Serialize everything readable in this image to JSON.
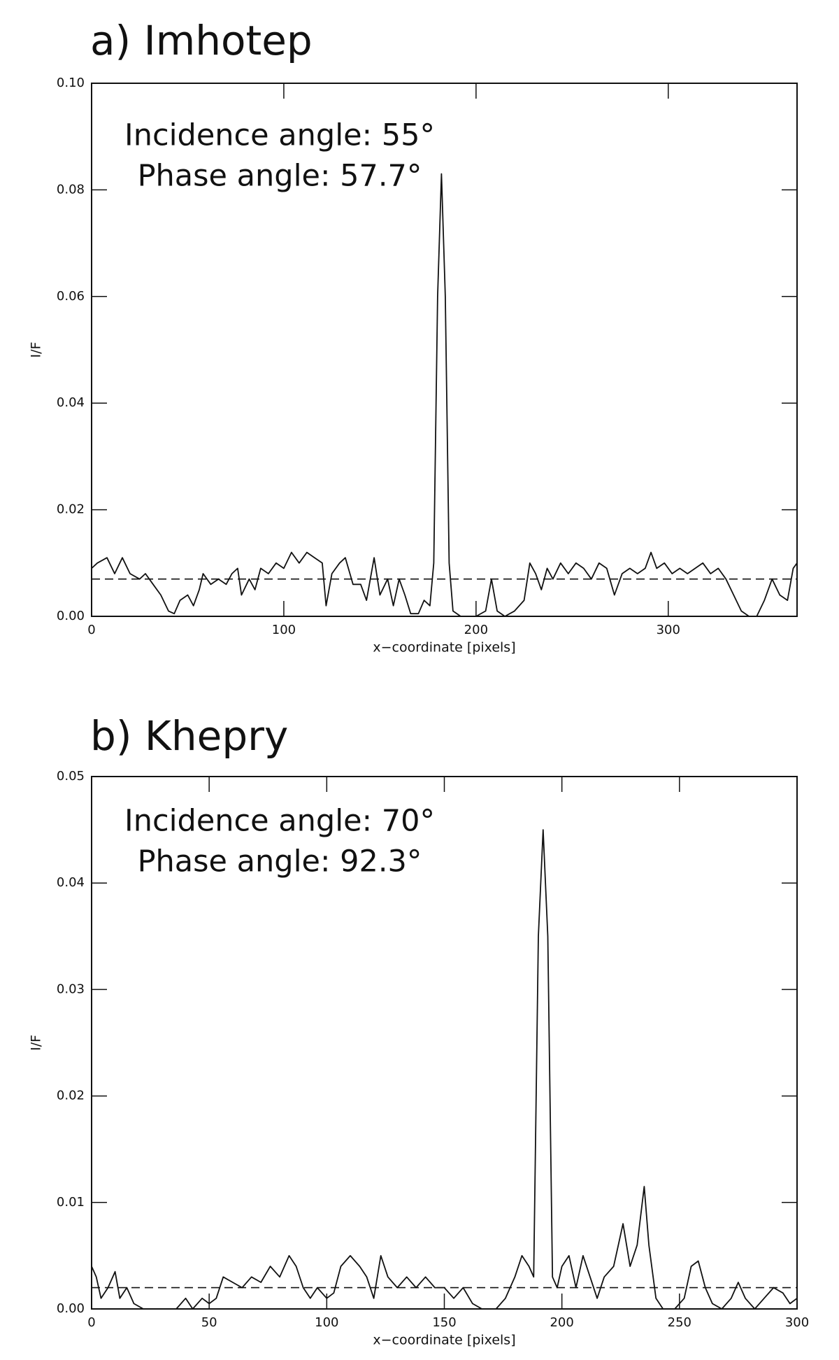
{
  "chart_data": [
    {
      "type": "line",
      "title": "a) Imhotep",
      "annotations": [
        "Incidence angle: 55°",
        "Phase angle: 57.7°"
      ],
      "x_label": "x−coordinate [pixels]",
      "y_label": "I/F",
      "color": "#111111",
      "xlim": [
        0,
        367
      ],
      "xticks": [
        0,
        100,
        200,
        300
      ],
      "ylim": [
        0,
        0.1
      ],
      "yticks": [
        {
          "value": 0,
          "label": "0.00"
        },
        {
          "value": 0.02,
          "label": "0.02"
        },
        {
          "value": 0.04,
          "label": "0.04"
        },
        {
          "value": 0.06,
          "label": "0.06"
        },
        {
          "value": 0.08,
          "label": "0.08"
        },
        {
          "value": 0.1,
          "label": "0.10"
        }
      ],
      "dashed_line_y": 0.007,
      "x": [
        0,
        3,
        8,
        12,
        16,
        20,
        25,
        28,
        32,
        36,
        40,
        43,
        46,
        50,
        53,
        56,
        58,
        62,
        66,
        70,
        73,
        76,
        78,
        82,
        85,
        88,
        92,
        96,
        100,
        104,
        108,
        112,
        116,
        120,
        122,
        125,
        129,
        132,
        136,
        140,
        143,
        147,
        150,
        154,
        157,
        160,
        163,
        166,
        170,
        173,
        176,
        178,
        180,
        182,
        184,
        186,
        188,
        192,
        200,
        205,
        208,
        211,
        215,
        220,
        225,
        228,
        231,
        234,
        237,
        240,
        244,
        248,
        252,
        256,
        260,
        264,
        268,
        272,
        276,
        280,
        284,
        288,
        291,
        294,
        298,
        302,
        306,
        310,
        314,
        318,
        322,
        326,
        330,
        334,
        338,
        342,
        346,
        350,
        354,
        358,
        362,
        365,
        367
      ],
      "values": [
        0.009,
        0.01,
        0.011,
        0.008,
        0.011,
        0.008,
        0.007,
        0.008,
        0.006,
        0.004,
        0.001,
        0.0005,
        0.003,
        0.004,
        0.002,
        0.005,
        0.008,
        0.006,
        0.007,
        0.006,
        0.008,
        0.009,
        0.004,
        0.007,
        0.005,
        0.009,
        0.008,
        0.01,
        0.009,
        0.012,
        0.01,
        0.012,
        0.011,
        0.01,
        0.002,
        0.008,
        0.01,
        0.011,
        0.006,
        0.006,
        0.003,
        0.011,
        0.004,
        0.007,
        0.002,
        0.007,
        0.004,
        0.0005,
        0.0005,
        0.003,
        0.002,
        0.01,
        0.06,
        0.083,
        0.06,
        0.01,
        0.001,
        0,
        0,
        0.001,
        0.007,
        0.001,
        0,
        0.001,
        0.003,
        0.01,
        0.008,
        0.005,
        0.009,
        0.007,
        0.01,
        0.008,
        0.01,
        0.009,
        0.007,
        0.01,
        0.009,
        0.004,
        0.008,
        0.009,
        0.008,
        0.009,
        0.012,
        0.009,
        0.01,
        0.008,
        0.009,
        0.008,
        0.009,
        0.01,
        0.008,
        0.009,
        0.007,
        0.004,
        0.001,
        0,
        0,
        0.003,
        0.007,
        0.004,
        0.003,
        0.009,
        0.01
      ]
    },
    {
      "type": "line",
      "title": "b) Khepry",
      "annotations": [
        "Incidence angle: 70°",
        "Phase angle: 92.3°"
      ],
      "x_label": "x−coordinate [pixels]",
      "y_label": "I/F",
      "color": "#111111",
      "xlim": [
        0,
        300
      ],
      "xticks": [
        0,
        50,
        100,
        150,
        200,
        250,
        300
      ],
      "ylim": [
        0,
        0.05
      ],
      "yticks": [
        {
          "value": 0,
          "label": "0.00"
        },
        {
          "value": 0.01,
          "label": "0.01"
        },
        {
          "value": 0.02,
          "label": "0.02"
        },
        {
          "value": 0.03,
          "label": "0.03"
        },
        {
          "value": 0.04,
          "label": "0.04"
        },
        {
          "value": 0.05,
          "label": "0.05"
        }
      ],
      "dashed_line_y": 0.002,
      "x": [
        0,
        2,
        4,
        7,
        10,
        12,
        15,
        18,
        22,
        30,
        36,
        40,
        43,
        47,
        50,
        53,
        56,
        60,
        64,
        68,
        72,
        76,
        80,
        84,
        87,
        90,
        93,
        96,
        100,
        103,
        106,
        110,
        114,
        117,
        120,
        123,
        126,
        130,
        134,
        138,
        142,
        146,
        150,
        154,
        158,
        162,
        166,
        172,
        176,
        180,
        183,
        186,
        188,
        190,
        192,
        194,
        196,
        198,
        200,
        203,
        206,
        209,
        212,
        215,
        218,
        222,
        226,
        229,
        232,
        235,
        237,
        240,
        243,
        248,
        252,
        255,
        258,
        261,
        264,
        268,
        272,
        275,
        278,
        282,
        286,
        290,
        294,
        297,
        300
      ],
      "values": [
        0.004,
        0.003,
        0.001,
        0.002,
        0.0035,
        0.001,
        0.002,
        0.0005,
        0,
        0,
        0,
        0.001,
        0,
        0.001,
        0.0005,
        0.001,
        0.003,
        0.0025,
        0.002,
        0.003,
        0.0025,
        0.004,
        0.003,
        0.005,
        0.004,
        0.002,
        0.001,
        0.002,
        0.001,
        0.0015,
        0.004,
        0.005,
        0.004,
        0.003,
        0.001,
        0.005,
        0.003,
        0.002,
        0.003,
        0.002,
        0.003,
        0.002,
        0.002,
        0.001,
        0.002,
        0.0005,
        0,
        0,
        0.001,
        0.003,
        0.005,
        0.004,
        0.003,
        0.035,
        0.045,
        0.035,
        0.003,
        0.002,
        0.004,
        0.005,
        0.002,
        0.005,
        0.003,
        0.001,
        0.003,
        0.004,
        0.008,
        0.004,
        0.006,
        0.0115,
        0.006,
        0.001,
        0,
        0,
        0.001,
        0.004,
        0.0045,
        0.002,
        0.0005,
        0,
        0.001,
        0.0025,
        0.001,
        0,
        0.001,
        0.002,
        0.0015,
        0.0005,
        0.001
      ]
    }
  ]
}
